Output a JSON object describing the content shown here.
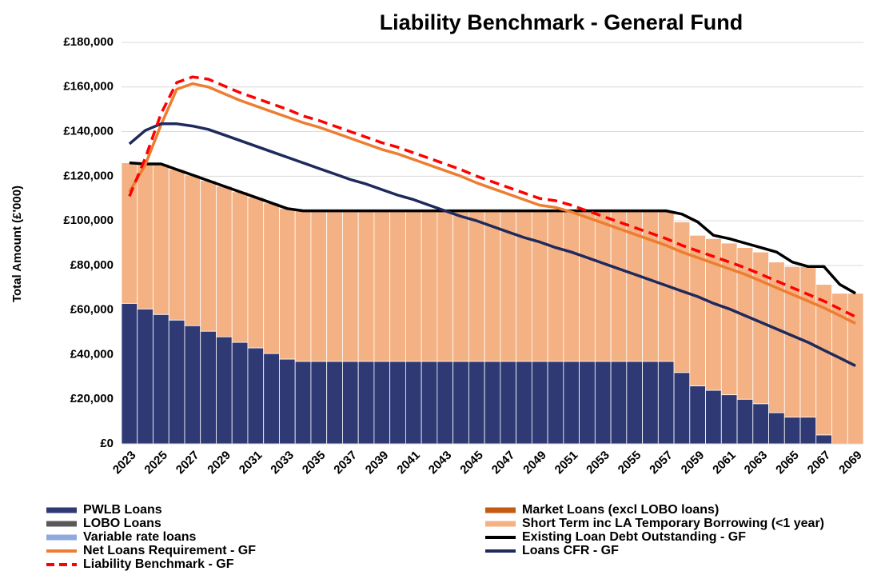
{
  "chart_data": {
    "type": "bar",
    "title": "Liability Benchmark - General Fund",
    "y_label": "Total Amount (£'000)",
    "categories": [
      "2023",
      null,
      "2025",
      null,
      "2027",
      null,
      "2029",
      null,
      "2031",
      null,
      "2033",
      null,
      "2035",
      null,
      "2037",
      null,
      "2039",
      null,
      "2041",
      null,
      "2043",
      null,
      "2045",
      null,
      "2047",
      null,
      "2049",
      null,
      "2051",
      null,
      "2053",
      null,
      "2055",
      null,
      "2057",
      null,
      "2059",
      null,
      "2061",
      null,
      "2063",
      null,
      "2065",
      null,
      "2067",
      null,
      "2069"
    ],
    "ylim": [
      0,
      180000
    ],
    "yticks": [
      {
        "value": 0,
        "label": "£0"
      },
      {
        "value": 20000,
        "label": "£20,000"
      },
      {
        "value": 40000,
        "label": "£40,000"
      },
      {
        "value": 60000,
        "label": "£60,000"
      },
      {
        "value": 80000,
        "label": "£80,000"
      },
      {
        "value": 100000,
        "label": "£100,000"
      },
      {
        "value": 120000,
        "label": "£120,000"
      },
      {
        "value": 140000,
        "label": "£140,000"
      },
      {
        "value": 160000,
        "label": "£160,000"
      },
      {
        "value": 180000,
        "label": "£180,000"
      }
    ],
    "grid": true,
    "series": [
      {
        "name": "PWLB Loans",
        "type": "bar",
        "color": "#2f3a75",
        "values": [
          63000,
          60500,
          58000,
          55500,
          53000,
          50500,
          48000,
          45500,
          43000,
          40500,
          38000,
          37000,
          37000,
          37000,
          37000,
          37000,
          37000,
          37000,
          37000,
          37000,
          37000,
          37000,
          37000,
          37000,
          37000,
          37000,
          37000,
          37000,
          37000,
          37000,
          37000,
          37000,
          37000,
          37000,
          37000,
          32000,
          26000,
          24000,
          22000,
          20000,
          18000,
          14000,
          12000,
          12000,
          4000,
          0,
          0
        ]
      },
      {
        "name": "Market Loans (excl LOBO loans)",
        "type": "bar",
        "color": "#c55a11",
        "values": [
          0,
          0,
          0,
          0,
          0,
          0,
          0,
          0,
          0,
          0,
          0,
          0,
          0,
          0,
          0,
          0,
          0,
          0,
          0,
          0,
          0,
          0,
          0,
          0,
          0,
          0,
          0,
          0,
          0,
          0,
          0,
          0,
          0,
          0,
          0,
          0,
          0,
          0,
          0,
          0,
          0,
          0,
          0,
          0,
          0,
          0,
          0
        ]
      },
      {
        "name": "LOBO Loans",
        "type": "bar",
        "color": "#595959",
        "values": [
          0,
          0,
          0,
          0,
          0,
          0,
          0,
          0,
          0,
          0,
          0,
          0,
          0,
          0,
          0,
          0,
          0,
          0,
          0,
          0,
          0,
          0,
          0,
          0,
          0,
          0,
          0,
          0,
          0,
          0,
          0,
          0,
          0,
          0,
          0,
          0,
          0,
          0,
          0,
          0,
          0,
          0,
          0,
          0,
          0,
          0,
          0
        ]
      },
      {
        "name": "Short Term inc LA Temporary Borrowing (<1 year)",
        "type": "bar",
        "color": "#f4b183",
        "values": [
          63000,
          65000,
          67500,
          67500,
          67500,
          67500,
          67500,
          67500,
          67500,
          67500,
          67500,
          67500,
          67500,
          67500,
          67500,
          67500,
          67500,
          67500,
          67500,
          67500,
          67500,
          67500,
          67500,
          67500,
          67500,
          67500,
          67500,
          67500,
          67500,
          67500,
          67500,
          67500,
          67500,
          67500,
          67500,
          67500,
          67500,
          68000,
          68000,
          68000,
          68000,
          67500,
          67500,
          67500,
          67500,
          67500,
          67500
        ]
      },
      {
        "name": "Variable rate loans",
        "type": "bar",
        "color": "#8faadc",
        "values": [
          0,
          0,
          0,
          0,
          0,
          0,
          0,
          0,
          0,
          0,
          0,
          0,
          0,
          0,
          0,
          0,
          0,
          0,
          0,
          0,
          0,
          0,
          0,
          0,
          0,
          0,
          0,
          0,
          0,
          0,
          0,
          0,
          0,
          0,
          0,
          0,
          0,
          0,
          0,
          0,
          0,
          0,
          0,
          0,
          0,
          0,
          0
        ]
      },
      {
        "name": "Existing Loan Debt Outstanding - GF",
        "type": "line",
        "color": "#000000",
        "values": [
          126000,
          125500,
          125500,
          123000,
          120500,
          118000,
          115500,
          113000,
          110500,
          108000,
          105500,
          104500,
          104500,
          104500,
          104500,
          104500,
          104500,
          104500,
          104500,
          104500,
          104500,
          104500,
          104500,
          104500,
          104500,
          104500,
          104500,
          104500,
          104500,
          104500,
          104500,
          104500,
          104500,
          104500,
          104500,
          103000,
          99500,
          93500,
          92000,
          90000,
          88000,
          86000,
          81500,
          79500,
          79500,
          71500,
          67500
        ]
      },
      {
        "name": "Net Loans Requirement - GF",
        "type": "line",
        "color": "#ed7d31",
        "values": [
          113000,
          125000,
          143000,
          159000,
          161500,
          160000,
          157000,
          154000,
          151500,
          149000,
          146500,
          144000,
          142000,
          139500,
          137000,
          134500,
          132000,
          130000,
          127500,
          125000,
          122500,
          120000,
          117000,
          114500,
          112000,
          109500,
          107000,
          106000,
          104000,
          101500,
          99000,
          96500,
          94000,
          91500,
          89000,
          86000,
          83500,
          81000,
          78500,
          76000,
          73000,
          70000,
          67000,
          64000,
          61000,
          57500,
          54000
        ]
      },
      {
        "name": "Loans CFR - GF",
        "type": "line",
        "color": "#1f2a5c",
        "values": [
          134500,
          140500,
          143500,
          143500,
          142500,
          141000,
          138500,
          136000,
          133500,
          131000,
          128500,
          126000,
          123500,
          121000,
          118500,
          116500,
          114000,
          111500,
          109500,
          107000,
          104500,
          102000,
          100000,
          97500,
          95000,
          92500,
          90500,
          88000,
          86000,
          83500,
          81000,
          78500,
          76000,
          73500,
          71000,
          68500,
          66000,
          63000,
          60500,
          57500,
          54500,
          51500,
          48500,
          45500,
          42000,
          38500,
          35000
        ]
      },
      {
        "name": "Liability Benchmark - GF",
        "type": "line",
        "dashed": true,
        "color": "#ff0000",
        "values": [
          111000,
          128000,
          148000,
          162000,
          164500,
          163500,
          160500,
          157500,
          155000,
          152500,
          150000,
          147000,
          145000,
          142500,
          140000,
          137500,
          135000,
          133000,
          130500,
          128000,
          125500,
          123000,
          120000,
          117500,
          115000,
          112500,
          110000,
          109000,
          107000,
          104500,
          102000,
          99500,
          97000,
          94500,
          92000,
          89000,
          86500,
          84000,
          81500,
          79000,
          76000,
          73000,
          70000,
          67000,
          64000,
          60500,
          57000
        ]
      }
    ]
  }
}
